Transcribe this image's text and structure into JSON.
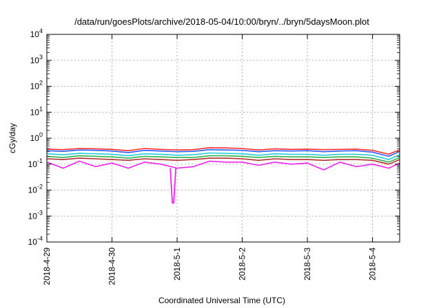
{
  "chart_data": {
    "type": "line",
    "title": "/data/run/goesPlots/archive/2018-05-04/10:00/bryn/../bryn/5daysMoon.plot",
    "xlabel": "Coordinated Universal Time (UTC)",
    "ylabel": "cGy/day",
    "y_scale": "log",
    "ylim": [
      0.0001,
      10000
    ],
    "xlim": [
      "2018-04-29T00:00",
      "2018-05-04T10:00"
    ],
    "grid": true,
    "legend": "none",
    "x_tick_labels": [
      "2018-4-29",
      "2018-4-30",
      "2018-5-1",
      "2018-5-2",
      "2018-5-3",
      "2018-5-4"
    ],
    "y_tick_labels": [
      {
        "base": "10",
        "exp": "-4"
      },
      {
        "base": "10",
        "exp": "-3"
      },
      {
        "base": "10",
        "exp": "-2"
      },
      {
        "base": "10",
        "exp": "-1"
      },
      {
        "base": "10",
        "exp": "0"
      },
      {
        "base": "10",
        "exp": "1"
      },
      {
        "base": "10",
        "exp": "2"
      },
      {
        "base": "10",
        "exp": "3"
      },
      {
        "base": "10",
        "exp": "4"
      }
    ],
    "x": [
      "2018-04-29T00:00",
      "2018-04-29T06:00",
      "2018-04-29T12:00",
      "2018-04-29T18:00",
      "2018-04-30T00:00",
      "2018-04-30T06:00",
      "2018-04-30T12:00",
      "2018-04-30T18:00",
      "2018-05-01T00:00",
      "2018-05-01T06:00",
      "2018-05-01T12:00",
      "2018-05-01T18:00",
      "2018-05-02T00:00",
      "2018-05-02T06:00",
      "2018-05-02T12:00",
      "2018-05-02T18:00",
      "2018-05-03T00:00",
      "2018-05-03T06:00",
      "2018-05-03T12:00",
      "2018-05-03T18:00",
      "2018-05-04T00:00",
      "2018-05-04T06:00",
      "2018-05-04T10:00"
    ],
    "series": [
      {
        "color": "#ff2a2a",
        "values": [
          0.38,
          0.36,
          0.4,
          0.39,
          0.37,
          0.33,
          0.4,
          0.37,
          0.35,
          0.36,
          0.43,
          0.42,
          0.4,
          0.35,
          0.39,
          0.37,
          0.38,
          0.36,
          0.37,
          0.38,
          0.34,
          0.24,
          0.36
        ]
      },
      {
        "color": "#2a5cff",
        "values": [
          0.33,
          0.31,
          0.35,
          0.34,
          0.32,
          0.28,
          0.34,
          0.32,
          0.3,
          0.31,
          0.36,
          0.35,
          0.34,
          0.3,
          0.33,
          0.32,
          0.33,
          0.3,
          0.32,
          0.33,
          0.29,
          0.2,
          0.31
        ]
      },
      {
        "color": "#22ccdd",
        "values": [
          0.25,
          0.23,
          0.26,
          0.25,
          0.24,
          0.21,
          0.25,
          0.24,
          0.22,
          0.23,
          0.27,
          0.26,
          0.25,
          0.22,
          0.25,
          0.24,
          0.24,
          0.22,
          0.24,
          0.24,
          0.22,
          0.15,
          0.23
        ]
      },
      {
        "color": "#2bb24a",
        "values": [
          0.2,
          0.18,
          0.21,
          0.2,
          0.19,
          0.17,
          0.2,
          0.19,
          0.18,
          0.18,
          0.21,
          0.21,
          0.2,
          0.18,
          0.2,
          0.19,
          0.19,
          0.18,
          0.19,
          0.19,
          0.17,
          0.12,
          0.18
        ]
      },
      {
        "color": "#b42a2a",
        "values": [
          0.16,
          0.15,
          0.17,
          0.16,
          0.15,
          0.14,
          0.16,
          0.15,
          0.14,
          0.15,
          0.17,
          0.17,
          0.16,
          0.14,
          0.16,
          0.15,
          0.15,
          0.14,
          0.15,
          0.15,
          0.14,
          0.1,
          0.15
        ]
      },
      {
        "color": "#ee22ee",
        "values": [
          0.12,
          0.07,
          0.13,
          0.08,
          0.11,
          0.07,
          0.12,
          0.1,
          0.07,
          0.08,
          0.13,
          0.12,
          0.12,
          0.09,
          0.12,
          0.1,
          0.11,
          0.06,
          0.12,
          0.08,
          0.1,
          0.07,
          0.11
        ]
      }
    ],
    "annotations": [
      {
        "series": 5,
        "x": "2018-04-30T22:30",
        "y": 0.0032,
        "note": "sharp dip"
      }
    ]
  }
}
